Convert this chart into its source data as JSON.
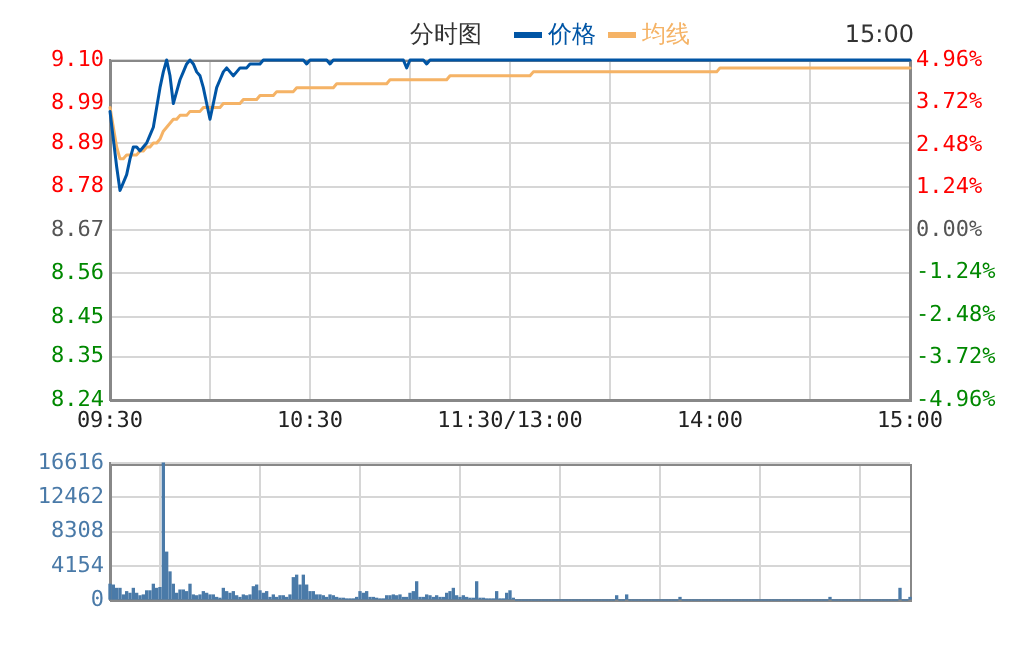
{
  "chart_data": [
    {
      "type": "line",
      "annotations": [
        "分时图",
        "15:00"
      ],
      "legend": "top",
      "grid": true,
      "marker": "none",
      "line_style": "solid",
      "categories": [
        "09:30",
        null,
        null,
        null,
        null,
        null,
        null,
        null,
        null,
        null,
        null,
        null,
        null,
        null,
        null,
        null,
        null,
        null,
        null,
        null,
        null,
        null,
        null,
        null,
        null,
        null,
        null,
        null,
        null,
        null,
        null,
        null,
        null,
        null,
        null,
        null,
        null,
        null,
        null,
        null,
        null,
        null,
        null,
        null,
        null,
        null,
        null,
        null,
        null,
        null,
        null,
        null,
        null,
        null,
        null,
        null,
        null,
        null,
        null,
        null,
        "10:30",
        null,
        null,
        null,
        null,
        null,
        null,
        null,
        null,
        null,
        null,
        null,
        null,
        null,
        null,
        null,
        null,
        null,
        null,
        null,
        null,
        null,
        null,
        null,
        null,
        null,
        null,
        null,
        null,
        null,
        null,
        null,
        null,
        null,
        null,
        null,
        null,
        null,
        null,
        null,
        null,
        null,
        null,
        null,
        null,
        null,
        null,
        null,
        null,
        null,
        null,
        null,
        null,
        null,
        null,
        null,
        null,
        null,
        null,
        null,
        "11:30/13:00",
        null,
        null,
        null,
        null,
        null,
        null,
        null,
        null,
        null,
        null,
        null,
        null,
        null,
        null,
        null,
        null,
        null,
        null,
        null,
        null,
        null,
        null,
        null,
        null,
        null,
        null,
        null,
        null,
        null,
        null,
        null,
        null,
        null,
        null,
        null,
        null,
        null,
        null,
        null,
        null,
        null,
        null,
        null,
        null,
        null,
        null,
        null,
        null,
        null,
        null,
        null,
        null,
        null,
        null,
        null,
        null,
        null,
        null,
        null,
        "14:00",
        null,
        null,
        null,
        null,
        null,
        null,
        null,
        null,
        null,
        null,
        null,
        null,
        null,
        null,
        null,
        null,
        null,
        null,
        null,
        null,
        null,
        null,
        null,
        null,
        null,
        null,
        null,
        null,
        null,
        null,
        null,
        null,
        null,
        null,
        null,
        null,
        null,
        null,
        null,
        null,
        null,
        null,
        null,
        null,
        null,
        null,
        null,
        null,
        null,
        null,
        null,
        null,
        null,
        null,
        null,
        null,
        null,
        null,
        null,
        "15:00"
      ],
      "ylim": [
        8.24,
        9.1
      ],
      "yticks": [
        8.24,
        8.35,
        8.45,
        8.56,
        8.67,
        8.78,
        8.89,
        8.99,
        {
          "value": 9.1,
          "label": "9.10"
        }
      ],
      "y2lim": [
        -4.96,
        4.96
      ],
      "y2ticks": [
        {
          "value": -4.96,
          "label": "-4.96%"
        },
        {
          "value": -3.72,
          "label": "-3.72%"
        },
        {
          "value": -2.48,
          "label": "-2.48%"
        },
        {
          "value": -1.24,
          "label": "-1.24%"
        },
        {
          "value": 0,
          "label": "0.00%"
        },
        {
          "value": 1.24,
          "label": "1.24%"
        },
        {
          "value": 2.48,
          "label": "2.48%"
        },
        {
          "value": 3.72,
          "label": "3.72%"
        },
        {
          "value": 4.96,
          "label": "4.96%"
        }
      ],
      "series": [
        {
          "name": "价格",
          "color": "#0055a5",
          "values": [
            8.97,
            8.9,
            8.83,
            8.77,
            8.79,
            8.81,
            8.85,
            8.88,
            8.88,
            8.87,
            8.88,
            8.89,
            8.91,
            8.93,
            8.98,
            9.03,
            9.07,
            9.1,
            9.06,
            8.99,
            9.02,
            9.05,
            9.07,
            9.09,
            9.1,
            9.09,
            9.07,
            9.06,
            9.03,
            8.99,
            8.95,
            8.99,
            9.03,
            9.05,
            9.07,
            9.08,
            9.07,
            9.06,
            9.07,
            9.08,
            9.08,
            9.08,
            9.09,
            9.09,
            9.09,
            9.09,
            9.1,
            9.1,
            9.1,
            9.1,
            9.1,
            9.1,
            9.1,
            9.1,
            9.1,
            9.1,
            9.1,
            9.1,
            9.1,
            9.09,
            9.1,
            9.1,
            9.1,
            9.1,
            9.1,
            9.1,
            9.09,
            9.1,
            9.1,
            9.1,
            9.1,
            9.1,
            9.1,
            9.1,
            9.1,
            9.1,
            9.1,
            9.1,
            9.1,
            9.1,
            9.1,
            9.1,
            9.1,
            9.1,
            9.1,
            9.1,
            9.1,
            9.1,
            9.1,
            9.08,
            9.1,
            9.1,
            9.1,
            9.1,
            9.1,
            9.09,
            9.1,
            9.1,
            9.1,
            9.1,
            9.1,
            9.1,
            9.1,
            9.1,
            9.1,
            9.1,
            9.1,
            9.1,
            9.1,
            9.1,
            9.1,
            9.1,
            9.1,
            9.1,
            9.1,
            9.1,
            9.1,
            9.1,
            9.1,
            9.1,
            9.1,
            9.1,
            9.1,
            9.1,
            9.1,
            9.1,
            9.1,
            9.1,
            9.1,
            9.1,
            9.1,
            9.1,
            9.1,
            9.1,
            9.1,
            9.1,
            9.1,
            9.1,
            9.1,
            9.1,
            9.1,
            9.1,
            9.1,
            9.1,
            9.1,
            9.1,
            9.1,
            9.1,
            9.1,
            9.1,
            9.1,
            9.1,
            9.1,
            9.1,
            9.1,
            9.1,
            9.1,
            9.1,
            9.1,
            9.1,
            9.1,
            9.1,
            9.1,
            9.1,
            9.1,
            9.1,
            9.1,
            9.1,
            9.1,
            9.1,
            9.1,
            9.1,
            9.1,
            9.1,
            9.1,
            9.1,
            9.1,
            9.1,
            9.1,
            9.1,
            9.1,
            9.1,
            9.1,
            9.1,
            9.1,
            9.1,
            9.1,
            9.1,
            9.1,
            9.1,
            9.1,
            9.1,
            9.1,
            9.1,
            9.1,
            9.1,
            9.1,
            9.1,
            9.1,
            9.1,
            9.1,
            9.1,
            9.1,
            9.1,
            9.1,
            9.1,
            9.1,
            9.1,
            9.1,
            9.1,
            9.1,
            9.1,
            9.1,
            9.1,
            9.1,
            9.1,
            9.1,
            9.1,
            9.1,
            9.1,
            9.1,
            9.1,
            9.1,
            9.1,
            9.1,
            9.1,
            9.1,
            9.1,
            9.1,
            9.1,
            9.1,
            9.1,
            9.1,
            9.1,
            9.1,
            9.1,
            9.1,
            9.1,
            9.1,
            9.1,
            9.1
          ]
        },
        {
          "name": "均线",
          "color": "#f5b366",
          "values": [
            8.98,
            8.93,
            8.88,
            8.85,
            8.85,
            8.86,
            8.86,
            8.86,
            8.86,
            8.87,
            8.87,
            8.88,
            8.88,
            8.89,
            8.89,
            8.9,
            8.92,
            8.93,
            8.94,
            8.95,
            8.95,
            8.96,
            8.96,
            8.96,
            8.97,
            8.97,
            8.97,
            8.97,
            8.98,
            8.98,
            8.98,
            8.98,
            8.98,
            8.98,
            8.99,
            8.99,
            8.99,
            8.99,
            8.99,
            8.99,
            9.0,
            9.0,
            9.0,
            9.0,
            9.0,
            9.01,
            9.01,
            9.01,
            9.01,
            9.01,
            9.02,
            9.02,
            9.02,
            9.02,
            9.02,
            9.02,
            9.03,
            9.03,
            9.03,
            9.03,
            9.03,
            9.03,
            9.03,
            9.03,
            9.03,
            9.03,
            9.03,
            9.03,
            9.04,
            9.04,
            9.04,
            9.04,
            9.04,
            9.04,
            9.04,
            9.04,
            9.04,
            9.04,
            9.04,
            9.04,
            9.04,
            9.04,
            9.04,
            9.04,
            9.05,
            9.05,
            9.05,
            9.05,
            9.05,
            9.05,
            9.05,
            9.05,
            9.05,
            9.05,
            9.05,
            9.05,
            9.05,
            9.05,
            9.05,
            9.05,
            9.05,
            9.05,
            9.06,
            9.06,
            9.06,
            9.06,
            9.06,
            9.06,
            9.06,
            9.06,
            9.06,
            9.06,
            9.06,
            9.06,
            9.06,
            9.06,
            9.06,
            9.06,
            9.06,
            9.06,
            9.06,
            9.06,
            9.06,
            9.06,
            9.06,
            9.06,
            9.06,
            9.07,
            9.07,
            9.07,
            9.07,
            9.07,
            9.07,
            9.07,
            9.07,
            9.07,
            9.07,
            9.07,
            9.07,
            9.07,
            9.07,
            9.07,
            9.07,
            9.07,
            9.07,
            9.07,
            9.07,
            9.07,
            9.07,
            9.07,
            9.07,
            9.07,
            9.07,
            9.07,
            9.07,
            9.07,
            9.07,
            9.07,
            9.07,
            9.07,
            9.07,
            9.07,
            9.07,
            9.07,
            9.07,
            9.07,
            9.07,
            9.07,
            9.07,
            9.07,
            9.07,
            9.07,
            9.07,
            9.07,
            9.07,
            9.07,
            9.07,
            9.07,
            9.07,
            9.07,
            9.07,
            9.07,
            9.07,
            9.08,
            9.08,
            9.08,
            9.08,
            9.08,
            9.08,
            9.08,
            9.08,
            9.08,
            9.08,
            9.08,
            9.08,
            9.08,
            9.08,
            9.08,
            9.08,
            9.08,
            9.08,
            9.08,
            9.08,
            9.08,
            9.08,
            9.08,
            9.08,
            9.08,
            9.08,
            9.08,
            9.08,
            9.08,
            9.08,
            9.08,
            9.08,
            9.08,
            9.08,
            9.08,
            9.08,
            9.08,
            9.08,
            9.08,
            9.08,
            9.08,
            9.08,
            9.08,
            9.08,
            9.08,
            9.08,
            9.08,
            9.08,
            9.08,
            9.08,
            9.08,
            9.08,
            9.08,
            9.08,
            9.08,
            9.08,
            9.08,
            9.08
          ]
        }
      ]
    },
    {
      "type": "bar",
      "grid": true,
      "tick_labels": "y",
      "color": "#4a7aa8",
      "categories": [
        null,
        null,
        null,
        null,
        null,
        null,
        null,
        null,
        null,
        null,
        null,
        null,
        null,
        null,
        null,
        null,
        null,
        null,
        null,
        null,
        null,
        null,
        null,
        null,
        null,
        null,
        null,
        null,
        null,
        null,
        null,
        null,
        null,
        null,
        null,
        null,
        null,
        null,
        null,
        null,
        null,
        null,
        null,
        null,
        null,
        null,
        null,
        null,
        null,
        null,
        null,
        null,
        null,
        null,
        null,
        null,
        null,
        null,
        null,
        null,
        null,
        null,
        null,
        null,
        null,
        null,
        null,
        null,
        null,
        null,
        null,
        null,
        null,
        null,
        null,
        null,
        null,
        null,
        null,
        null,
        null,
        null,
        null,
        null,
        null,
        null,
        null,
        null,
        null,
        null,
        null,
        null,
        null,
        null,
        null,
        null,
        null,
        null,
        null,
        null,
        null,
        null,
        null,
        null,
        null,
        null,
        null,
        null,
        null,
        null,
        null,
        null,
        null,
        null,
        null,
        null,
        null,
        null,
        null,
        null,
        null,
        null,
        null,
        null,
        null,
        null,
        null,
        null,
        null,
        null,
        null,
        null,
        null,
        null,
        null,
        null,
        null,
        null,
        null,
        null,
        null,
        null,
        null,
        null,
        null,
        null,
        null,
        null,
        null,
        null,
        null,
        null,
        null,
        null,
        null,
        null,
        null,
        null,
        null,
        null,
        null,
        null,
        null,
        null,
        null,
        null,
        null,
        null,
        null,
        null,
        null,
        null,
        null,
        null,
        null,
        null,
        null,
        null,
        null,
        null,
        null,
        null,
        null,
        null,
        null,
        null,
        null,
        null,
        null,
        null,
        null,
        null,
        null,
        null,
        null,
        null,
        null,
        null,
        null,
        null,
        null,
        null,
        null,
        null,
        null,
        null,
        null,
        null,
        null,
        null,
        null,
        null,
        null,
        null,
        null,
        null,
        null,
        null,
        null,
        null,
        null,
        null,
        null,
        null,
        null,
        null,
        null,
        null,
        null,
        null,
        null,
        null,
        null,
        null,
        null,
        null,
        null,
        null,
        null,
        null,
        null
      ],
      "ylim": [
        0,
        16616
      ],
      "yticks": [
        0,
        4154,
        8308,
        12462,
        16616
      ],
      "values": [
        1900,
        1800,
        1400,
        1400,
        600,
        1000,
        800,
        1400,
        800,
        500,
        600,
        1100,
        1100,
        1900,
        1400,
        1500,
        16616,
        5800,
        3400,
        1900,
        800,
        1200,
        1200,
        1000,
        1900,
        600,
        500,
        600,
        1000,
        800,
        600,
        600,
        300,
        200,
        1400,
        1000,
        800,
        1000,
        500,
        300,
        600,
        500,
        600,
        1600,
        1800,
        1100,
        800,
        1000,
        300,
        600,
        300,
        500,
        500,
        300,
        600,
        2700,
        3000,
        1800,
        3000,
        1800,
        1000,
        1000,
        600,
        600,
        500,
        300,
        600,
        500,
        300,
        200,
        200,
        100,
        100,
        100,
        300,
        1000,
        800,
        1000,
        300,
        300,
        200,
        100,
        100,
        500,
        500,
        600,
        500,
        600,
        300,
        300,
        800,
        1000,
        2200,
        300,
        300,
        600,
        500,
        300,
        500,
        300,
        300,
        800,
        1000,
        1400,
        500,
        300,
        500,
        300,
        200,
        200,
        2200,
        200,
        200,
        100,
        100,
        100,
        1000,
        100,
        100,
        800,
        1100,
        200,
        0,
        0,
        0,
        0,
        0,
        0,
        0,
        0,
        0,
        0,
        0,
        0,
        0,
        0,
        0,
        0,
        0,
        0,
        0,
        0,
        0,
        0,
        0,
        0,
        0,
        0,
        0,
        0,
        0,
        0,
        500,
        0,
        0,
        600,
        0,
        0,
        0,
        0,
        0,
        0,
        0,
        0,
        0,
        0,
        0,
        0,
        0,
        0,
        0,
        300,
        0,
        0,
        0,
        0,
        0,
        0,
        0,
        0,
        0,
        0,
        0,
        0,
        0,
        0,
        0,
        0,
        0,
        0,
        0,
        0,
        0,
        0,
        0,
        0,
        0,
        0,
        0,
        0,
        0,
        0,
        0,
        0,
        0,
        0,
        0,
        0,
        0,
        0,
        0,
        0,
        0,
        0,
        0,
        0,
        300,
        0,
        0,
        0,
        0,
        0,
        0,
        0,
        0,
        0,
        0,
        0,
        0,
        0,
        0,
        0,
        0,
        0,
        0,
        0,
        0,
        1400,
        0,
        0,
        300
      ]
    }
  ]
}
